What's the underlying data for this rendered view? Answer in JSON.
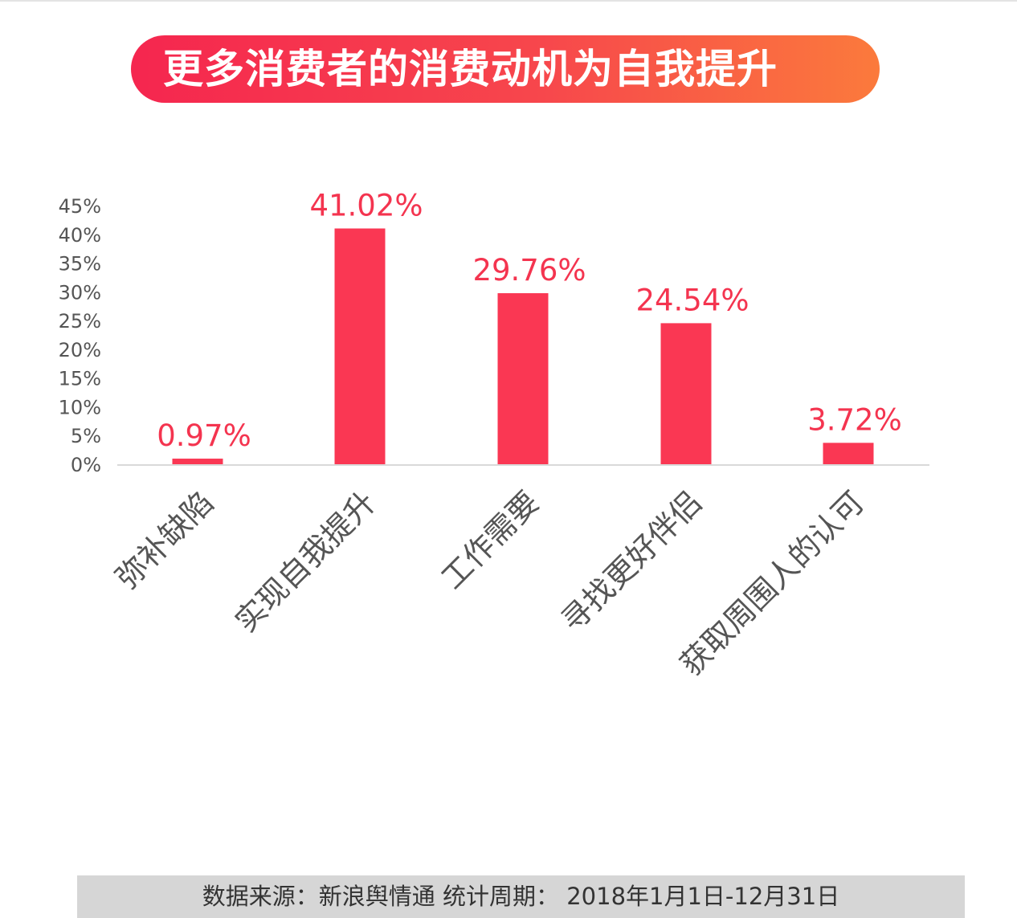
{
  "title": "更多消费者的消费动机为自我提升",
  "source_note": "数据来源：新浪舆情通  统计周期：  2018年1月1日-12月31日",
  "colors": {
    "bar": "#fa3753",
    "value_label": "#f4344f",
    "axis_text": "#555555",
    "category_text": "#555555",
    "baseline": "#d9d9d9"
  },
  "chart_data": {
    "type": "bar",
    "title": "",
    "xlabel": "",
    "ylabel": "",
    "ylim": [
      0,
      45
    ],
    "y_ticks": [
      "0%",
      "5%",
      "10%",
      "15%",
      "20%",
      "25%",
      "30%",
      "35%",
      "40%",
      "45%"
    ],
    "y_tick_values": [
      0,
      5,
      10,
      15,
      20,
      25,
      30,
      35,
      40,
      45
    ],
    "categories": [
      "弥补缺陷",
      "实现自我提升",
      "工作需要",
      "寻找更好伴侣",
      "获取周围人的认可"
    ],
    "values": [
      0.97,
      41.02,
      29.76,
      24.54,
      3.72
    ],
    "value_labels": [
      "0.97%",
      "41.02%",
      "29.76%",
      "24.54%",
      "3.72%"
    ],
    "grid": false,
    "legend": "none"
  }
}
